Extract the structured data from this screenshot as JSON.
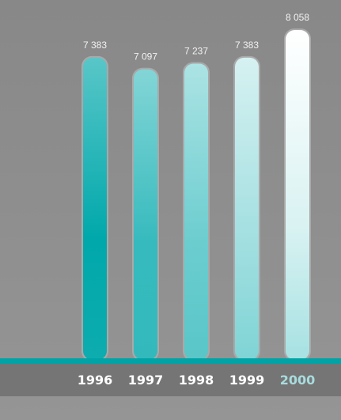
{
  "chart_data": {
    "type": "bar",
    "categories": [
      "1996",
      "1997",
      "1998",
      "1999",
      "2000"
    ],
    "values": [
      7383,
      7097,
      7237,
      7383,
      8058
    ],
    "value_labels": [
      "7 383",
      "7 097",
      "7 237",
      "7 383",
      "8 058"
    ],
    "title": "",
    "xlabel": "",
    "ylabel": "",
    "ylim": [
      0,
      8058
    ],
    "grid": false,
    "legend": "none"
  },
  "colors": {
    "background": "#8e8e8e",
    "baseline_teal": "#00a3a6",
    "axis_band": "#757575",
    "bar_teal": "#00a8ab",
    "bar_white": "#ffffff",
    "bar_outline": "#a9a9a9",
    "label_default": "#ffffff",
    "label_highlight": "#a8dcde"
  },
  "highlight_category": "2000"
}
